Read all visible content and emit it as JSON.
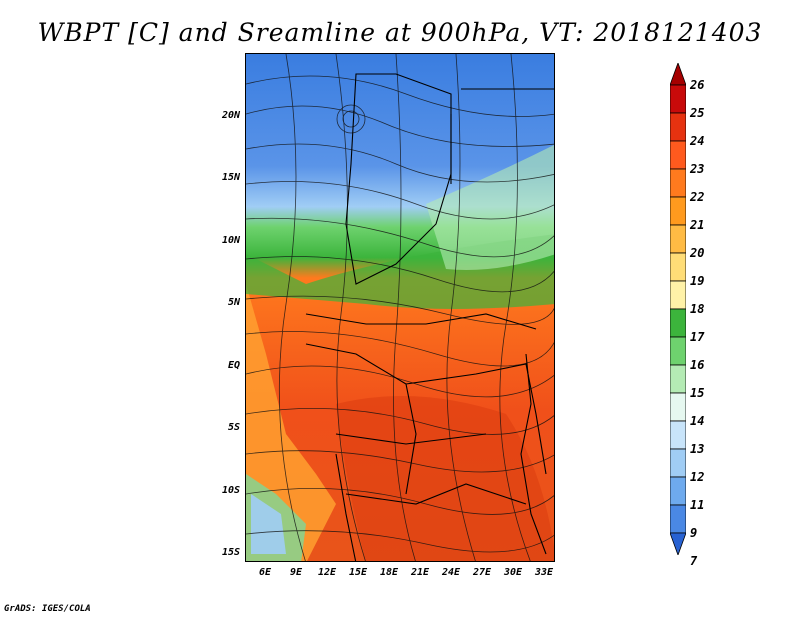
{
  "title": "WBPT [C] and Sreamline at 900hPa, VT: 2018121403",
  "credit": "GrADS: IGES/COLA",
  "map": {
    "lat_labels": [
      "20N",
      "15N",
      "10N",
      "5N",
      "EQ",
      "5S",
      "10S",
      "15S"
    ],
    "lon_labels": [
      "6E",
      "9E",
      "12E",
      "15E",
      "18E",
      "21E",
      "24E",
      "27E",
      "30E",
      "33E"
    ]
  },
  "colorbar": {
    "labels": [
      "26",
      "25",
      "24",
      "23",
      "22",
      "21",
      "20",
      "19",
      "18",
      "17",
      "16",
      "15",
      "14",
      "13",
      "12",
      "11",
      "9",
      "7"
    ],
    "colors": [
      "#a50000",
      "#c80a0a",
      "#e63210",
      "#ff5a1e",
      "#ff7a1e",
      "#ff9a1e",
      "#ffbb44",
      "#ffdd77",
      "#fff2a8",
      "#3cb43c",
      "#6ed26e",
      "#b4ebb4",
      "#e6f8f0",
      "#c8e4fa",
      "#a0cdf5",
      "#6eaaee",
      "#4a88e4",
      "#2862d2"
    ]
  }
}
